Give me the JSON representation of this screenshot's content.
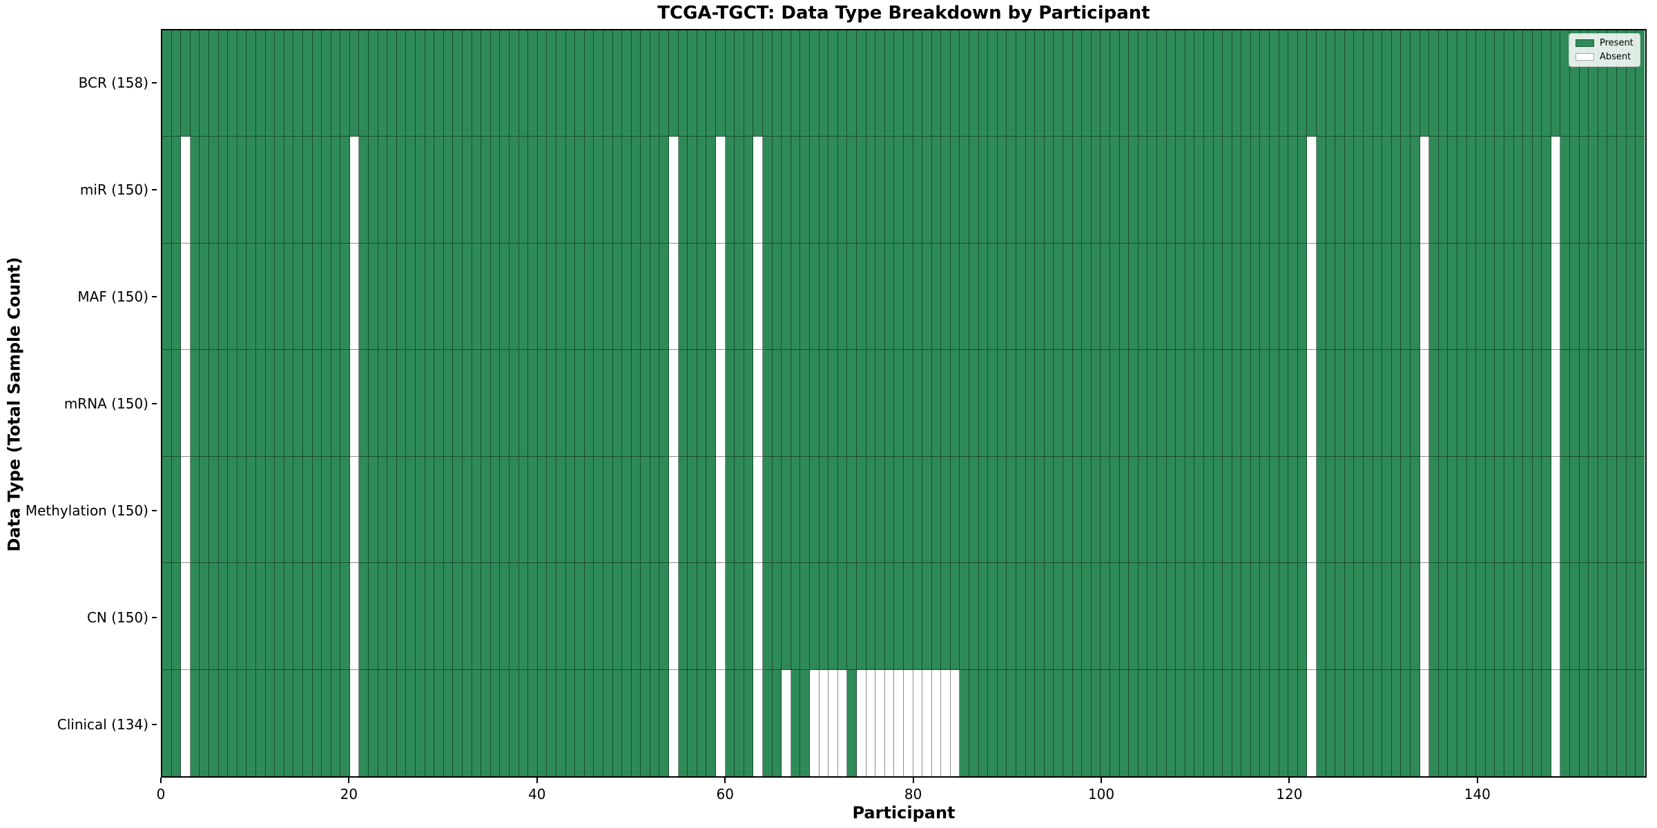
{
  "page": {
    "background": "#ffffff"
  },
  "chart_data": {
    "type": "heatmap",
    "title": "TCGA-TGCT: Data Type Breakdown by Participant",
    "xlabel": "Participant",
    "ylabel": "Data Type (Total Sample Count)",
    "x_ticks": [
      0,
      20,
      40,
      60,
      80,
      100,
      120,
      140
    ],
    "x_range": [
      0,
      158
    ],
    "n_participants": 158,
    "grid": "cell-borders-only",
    "colors": {
      "present": "#2e8b57",
      "absent": "#ffffff",
      "cell_edge": "rgba(0,0,0,0.45)",
      "frame": "#000000"
    },
    "legend": {
      "position": "top-right",
      "entries": [
        {
          "label": "Present",
          "color": "#2e8b57"
        },
        {
          "label": "Absent",
          "color": "#ffffff"
        }
      ]
    },
    "rows": [
      {
        "label": "BCR (158)",
        "data_type": "BCR",
        "total": 158,
        "absent_participants": []
      },
      {
        "label": "miR (150)",
        "data_type": "miR",
        "total": 150,
        "absent_participants": [
          2,
          20,
          54,
          59,
          63,
          122,
          134,
          148
        ]
      },
      {
        "label": "MAF (150)",
        "data_type": "MAF",
        "total": 150,
        "absent_participants": [
          2,
          20,
          54,
          59,
          63,
          122,
          134,
          148
        ]
      },
      {
        "label": "mRNA (150)",
        "data_type": "mRNA",
        "total": 150,
        "absent_participants": [
          2,
          20,
          54,
          59,
          63,
          122,
          134,
          148
        ]
      },
      {
        "label": "Methylation (150)",
        "data_type": "Methylation",
        "total": 150,
        "absent_participants": [
          2,
          20,
          54,
          59,
          63,
          122,
          134,
          148
        ]
      },
      {
        "label": "CN (150)",
        "data_type": "CN",
        "total": 150,
        "absent_participants": [
          2,
          20,
          54,
          59,
          63,
          122,
          134,
          148
        ]
      },
      {
        "label": "Clinical (134)",
        "data_type": "Clinical",
        "total": 134,
        "absent_participants": [
          2,
          20,
          54,
          59,
          63,
          66,
          69,
          70,
          71,
          72,
          74,
          75,
          76,
          77,
          78,
          79,
          80,
          81,
          82,
          83,
          84,
          122,
          134,
          148
        ]
      }
    ]
  }
}
